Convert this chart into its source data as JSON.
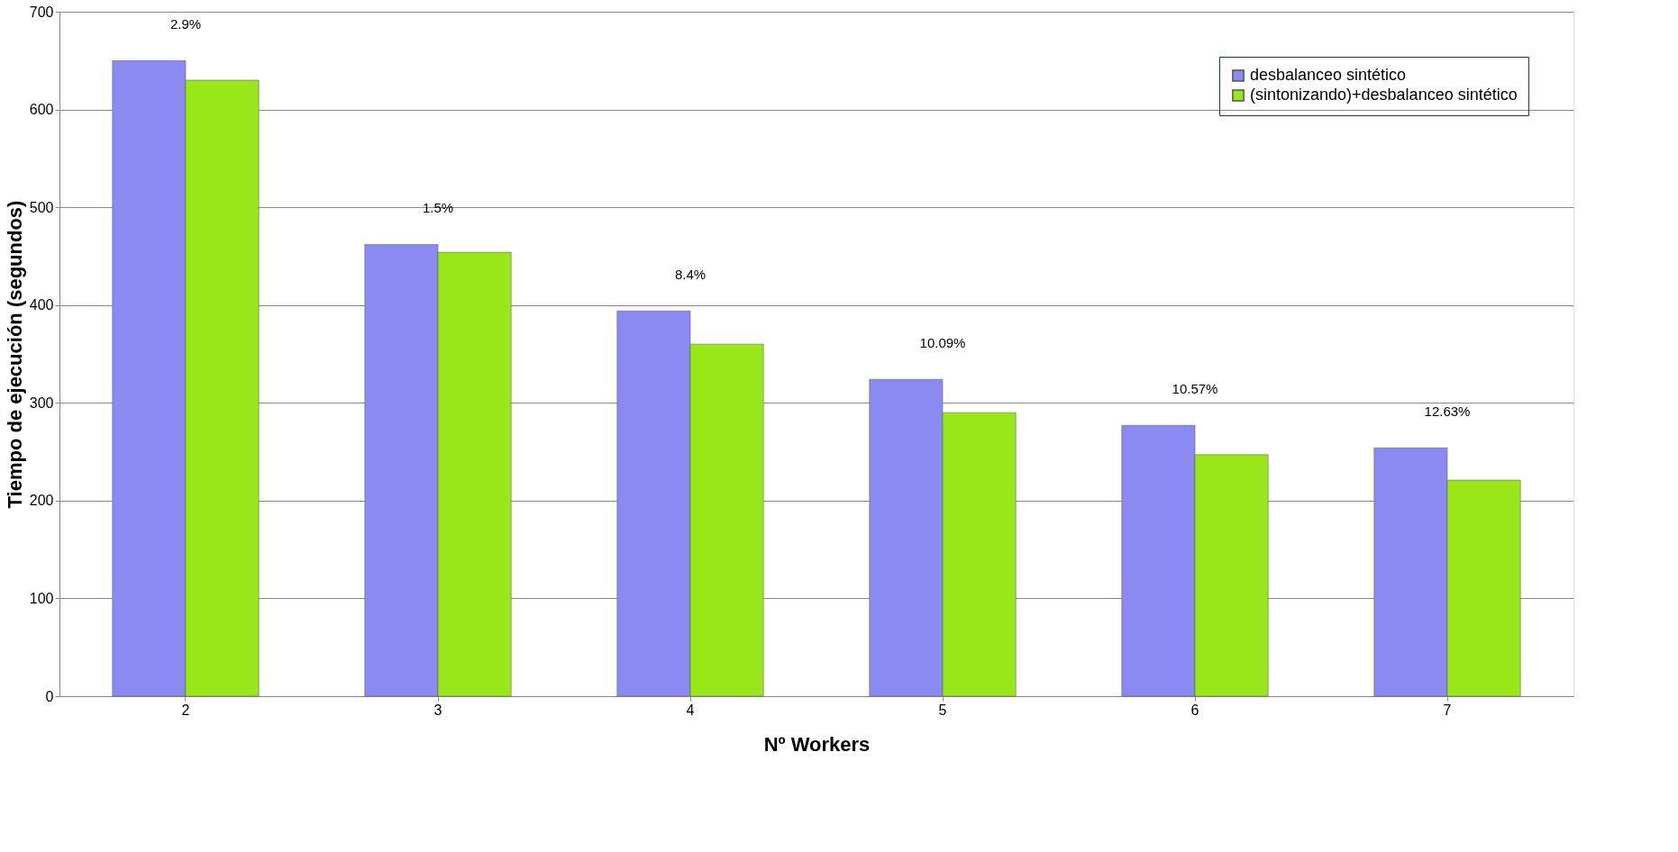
{
  "chart_data": {
    "type": "bar",
    "xlabel": "Nº Workers",
    "ylabel": "Tiempo de ejecución (segundos)",
    "categories": [
      "2",
      "3",
      "4",
      "5",
      "6",
      "7"
    ],
    "series": [
      {
        "name": "desbalanceo sintético",
        "color": "#8a8af2",
        "values": [
          650,
          462,
          394,
          324,
          277,
          254
        ]
      },
      {
        "name": "(sintonizando)+desbalanceo sintético",
        "color": "#99e619",
        "values": [
          630,
          454,
          360,
          290,
          247,
          221
        ]
      }
    ],
    "ylim": [
      0,
      700
    ],
    "yticks": [
      0,
      100,
      200,
      300,
      400,
      500,
      600,
      700
    ],
    "grid": "y",
    "legend": "top right",
    "annotations": [
      "2.9%",
      "1.5%",
      "8.4%",
      "10.09%",
      "10.57%",
      "12.63%"
    ]
  }
}
